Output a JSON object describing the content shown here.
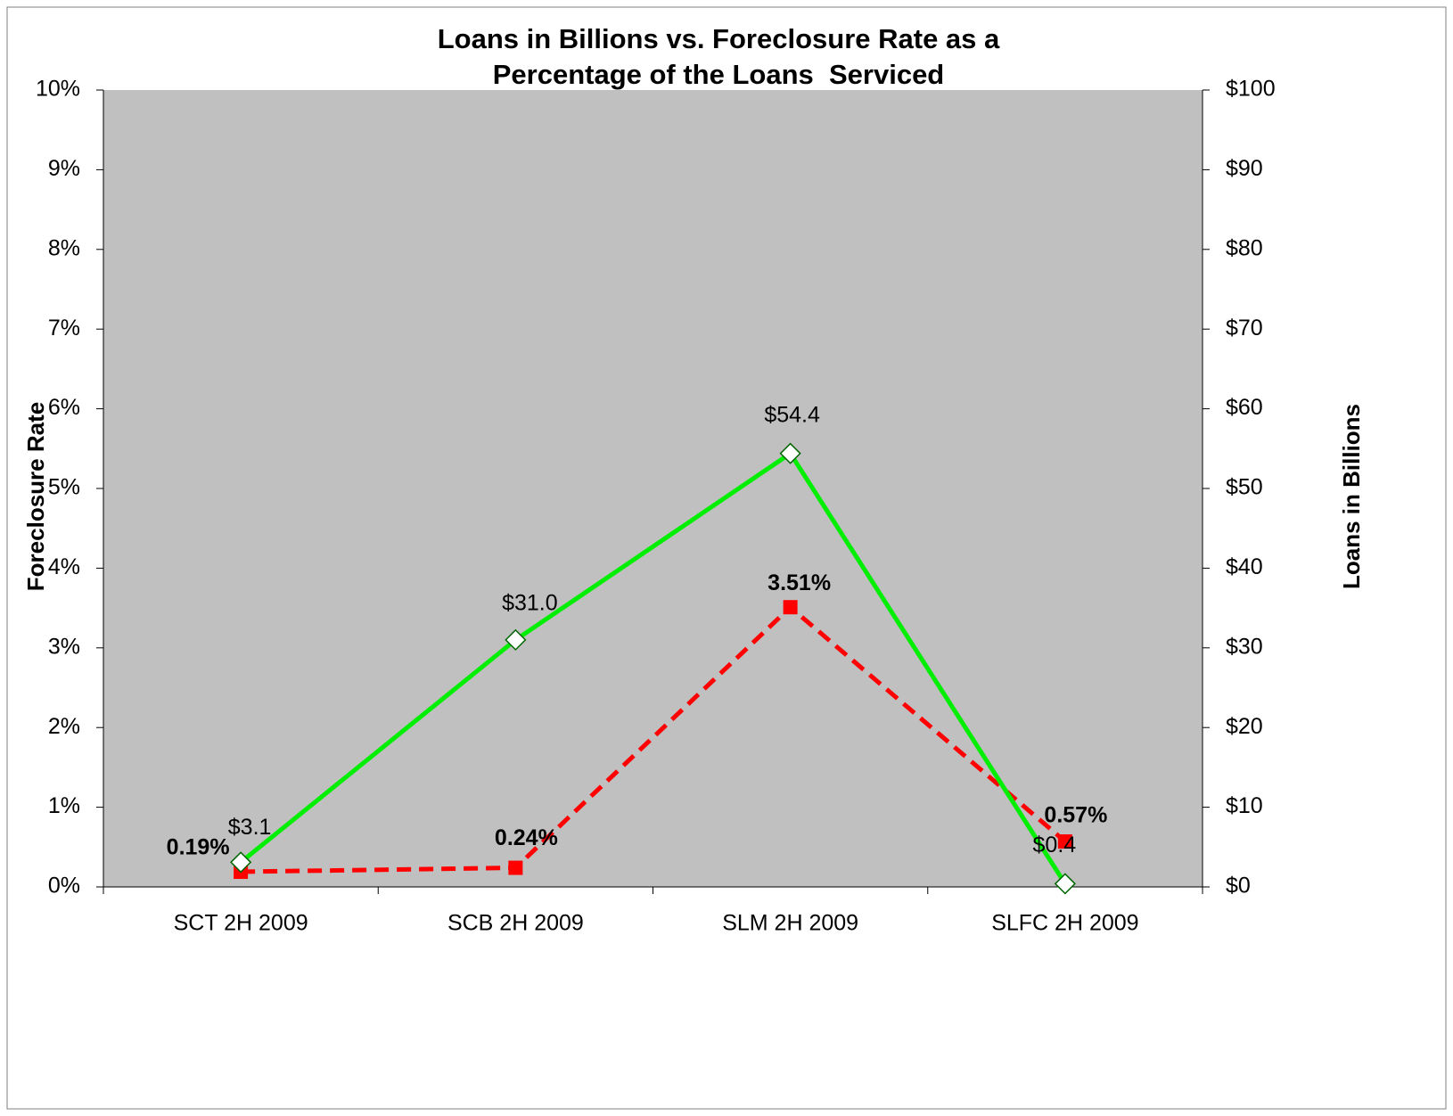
{
  "chart_data": {
    "type": "line",
    "title": [
      "Loans in Billions vs. Foreclosure Rate as a",
      "Percentage of the Loans  Serviced"
    ],
    "y_label": "Foreclosure Rate",
    "y2_label": "Loans in Billions",
    "categories": [
      "SCT 2H 2009",
      "SCB 2H 2009",
      "SLM 2H 2009",
      "SLFC 2H 2009"
    ],
    "series": [
      {
        "color": "#ff0000",
        "axis": "y",
        "dash": true,
        "marker": "square",
        "values": [
          0.19,
          0.24,
          3.51,
          0.57
        ],
        "value_labels": [
          "0.19%",
          "0.24%",
          "3.51%",
          "0.57%"
        ]
      },
      {
        "color": "#00ee00",
        "axis": "y2",
        "dash": false,
        "marker": "diamond",
        "values": [
          3.1,
          31.0,
          54.4,
          0.4
        ],
        "value_labels": [
          "$3.1",
          "$31.0",
          "$54.4",
          "$0.4"
        ]
      }
    ],
    "ylim": [
      0,
      10
    ],
    "yticks": [
      {
        "value": 0,
        "label": "0%"
      },
      {
        "value": 1,
        "label": "1%"
      },
      {
        "value": 2,
        "label": "2%"
      },
      {
        "value": 3,
        "label": "3%"
      },
      {
        "value": 4,
        "label": "4%"
      },
      {
        "value": 5,
        "label": "5%"
      },
      {
        "value": 6,
        "label": "6%"
      },
      {
        "value": 7,
        "label": "7%"
      },
      {
        "value": 8,
        "label": "8%"
      },
      {
        "value": 9,
        "label": "9%"
      },
      {
        "value": 10,
        "label": "10%"
      }
    ],
    "y2lim": [
      0,
      100
    ],
    "y2ticks": [
      {
        "value": 0,
        "label": "$0"
      },
      {
        "value": 10,
        "label": "$10"
      },
      {
        "value": 20,
        "label": "$20"
      },
      {
        "value": 30,
        "label": "$30"
      },
      {
        "value": 40,
        "label": "$40"
      },
      {
        "value": 50,
        "label": "$50"
      },
      {
        "value": 60,
        "label": "$60"
      },
      {
        "value": 70,
        "label": "$70"
      },
      {
        "value": 80,
        "label": "$80"
      },
      {
        "value": 90,
        "label": "$90"
      },
      {
        "value": 100,
        "label": "$100"
      }
    ],
    "grid": false
  }
}
